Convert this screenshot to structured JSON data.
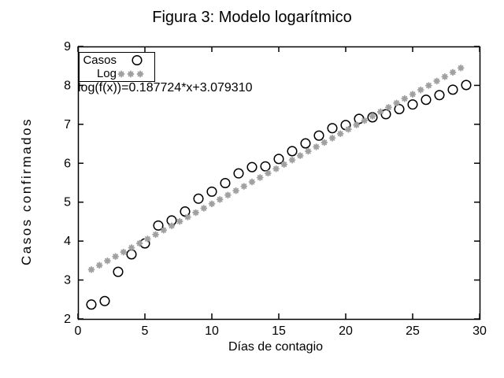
{
  "chart_data": {
    "type": "scatter",
    "title": "Figura 3: Modelo logarítmico",
    "xlabel": "Días de contagio",
    "ylabel": "Casos confirmados",
    "xlim": [
      0,
      30
    ],
    "ylim": [
      2,
      9
    ],
    "xticks": [
      0,
      5,
      10,
      15,
      20,
      25,
      30
    ],
    "yticks": [
      2,
      3,
      4,
      5,
      6,
      7,
      8,
      9
    ],
    "grid": false,
    "legend_position": "top-left",
    "annotation": "log(f(x))=0.187724*x+3.079310",
    "colors": {
      "casos": "#000000",
      "log": "#a0a0a0",
      "axis": "#000000"
    },
    "series": [
      {
        "name": "Casos",
        "marker": "circle",
        "color": "#000000",
        "x": [
          1,
          2,
          3,
          4,
          5,
          6,
          7,
          8,
          9,
          10,
          11,
          12,
          13,
          14,
          15,
          16,
          17,
          18,
          19,
          20,
          21,
          22,
          23,
          24,
          25,
          26,
          27,
          28,
          29
        ],
        "y": [
          2.37,
          2.46,
          3.21,
          3.66,
          3.94,
          4.4,
          4.53,
          4.76,
          5.09,
          5.27,
          5.49,
          5.74,
          5.9,
          5.92,
          6.11,
          6.31,
          6.51,
          6.71,
          6.9,
          6.98,
          7.14,
          7.18,
          7.26,
          7.39,
          7.51,
          7.63,
          7.75,
          7.89,
          8.01
        ]
      },
      {
        "name": "Log",
        "marker": "asterisk",
        "color": "#a0a0a0",
        "model": {
          "slope": 0.187724,
          "intercept": 3.07931,
          "x_start": 1.0,
          "x_step": 0.6,
          "n": 47
        }
      }
    ]
  }
}
